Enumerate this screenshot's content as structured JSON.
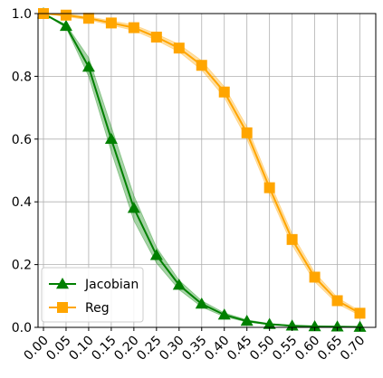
{
  "chart_data": {
    "type": "line",
    "title": "",
    "xlabel": "",
    "ylabel": "",
    "x": [
      0.0,
      0.05,
      0.1,
      0.15,
      0.2,
      0.25,
      0.3,
      0.35,
      0.4,
      0.45,
      0.5,
      0.55,
      0.6,
      0.65,
      0.7
    ],
    "x_tick_labels": [
      "0.00",
      "0.05",
      "0.10",
      "0.15",
      "0.20",
      "0.25",
      "0.30",
      "0.35",
      "0.40",
      "0.45",
      "0.50",
      "0.55",
      "0.60",
      "0.65",
      "0.70"
    ],
    "xlim": [
      -0.012,
      0.735
    ],
    "ylim": [
      0.0,
      1.0
    ],
    "y_ticks": [
      0.0,
      0.2,
      0.4,
      0.6,
      0.8,
      1.0
    ],
    "y_tick_labels": [
      "0.0",
      "0.2",
      "0.4",
      "0.6",
      "0.8",
      "1.0"
    ],
    "grid": true,
    "legend_position": "bottom-left",
    "series": [
      {
        "name": "Jacobian",
        "color": "#008000",
        "marker": "triangle",
        "values": [
          1.0,
          0.96,
          0.83,
          0.6,
          0.38,
          0.23,
          0.135,
          0.075,
          0.04,
          0.02,
          0.01,
          0.005,
          0.003,
          0.002,
          0.001
        ],
        "band_lower": [
          1.0,
          0.955,
          0.8,
          0.56,
          0.34,
          0.205,
          0.12,
          0.065,
          0.034,
          0.017,
          0.008,
          0.004,
          0.002,
          0.001,
          0.0
        ],
        "band_upper": [
          1.0,
          0.965,
          0.86,
          0.64,
          0.42,
          0.255,
          0.15,
          0.085,
          0.046,
          0.024,
          0.012,
          0.006,
          0.004,
          0.003,
          0.002
        ]
      },
      {
        "name": "Reg",
        "color": "#FFA500",
        "marker": "square",
        "values": [
          1.0,
          0.995,
          0.985,
          0.97,
          0.955,
          0.925,
          0.89,
          0.835,
          0.75,
          0.62,
          0.445,
          0.28,
          0.16,
          0.085,
          0.045
        ],
        "band_lower": [
          1.0,
          0.99,
          0.98,
          0.963,
          0.946,
          0.915,
          0.878,
          0.82,
          0.733,
          0.6,
          0.425,
          0.262,
          0.145,
          0.075,
          0.038
        ],
        "band_upper": [
          1.0,
          1.0,
          0.99,
          0.977,
          0.964,
          0.935,
          0.902,
          0.85,
          0.767,
          0.64,
          0.465,
          0.298,
          0.175,
          0.095,
          0.052
        ]
      }
    ]
  }
}
